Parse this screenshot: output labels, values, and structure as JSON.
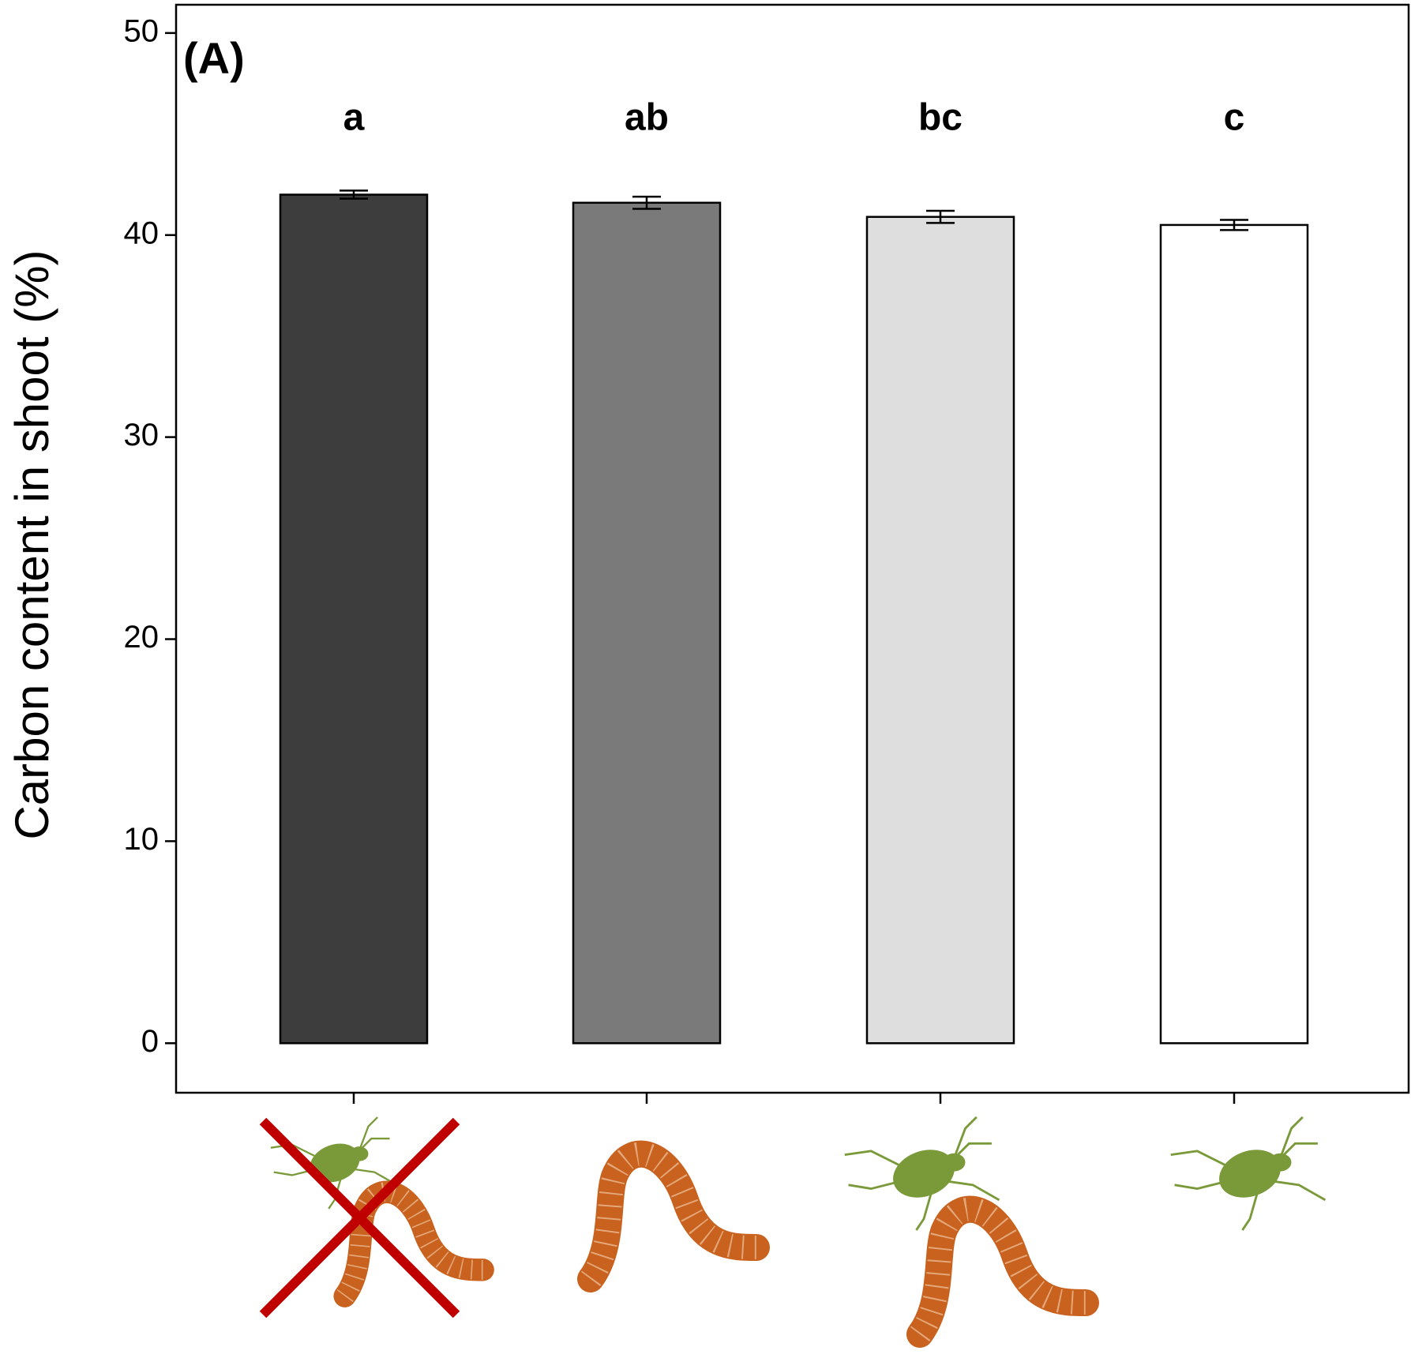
{
  "chart_data": {
    "type": "bar",
    "panel_label": "(A)",
    "y_label": "Carbon content in shoot (%)",
    "categories": [
      null,
      null,
      null,
      null
    ],
    "values": [
      42.0,
      41.6,
      40.9,
      40.5
    ],
    "errors": [
      0.2,
      0.3,
      0.3,
      0.25
    ],
    "letters": [
      "a",
      "ab",
      "bc",
      "c"
    ],
    "colors": [
      "#3d3d3d",
      "#7a7a7a",
      "#dedede",
      "#ffffff"
    ],
    "ylim": [
      -2.45,
      51.4
    ],
    "yticks": [
      0,
      10,
      20,
      30,
      40,
      50
    ],
    "grid": false
  }
}
